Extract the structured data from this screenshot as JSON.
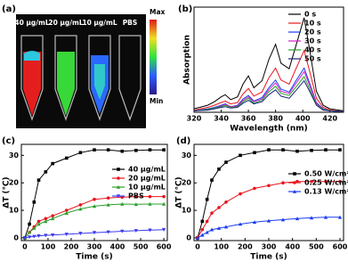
{
  "image_panel": {
    "panel_label": "(a)",
    "tube_labels": [
      "40 μg/mL",
      "20 μg/mL",
      "10 μg/mL",
      "PBS"
    ],
    "colorbar_max": "Max",
    "colorbar_min": "Min"
  },
  "chart_data": [
    {
      "type": "line",
      "panel_label": "(b)",
      "x_label": "Wavelength (nm)",
      "y_label": "Absorption",
      "x": [
        320,
        330,
        335,
        340,
        343,
        347,
        352,
        356,
        360,
        364,
        370,
        375,
        380,
        384,
        390,
        395,
        401,
        405,
        410,
        415,
        420,
        430
      ],
      "xlim": [
        320,
        430
      ],
      "xticks": [
        320,
        340,
        360,
        380,
        400,
        420
      ],
      "ylim": [
        0,
        1.5
      ],
      "legend": "upper right",
      "series": [
        {
          "name": "0 s",
          "color": "#000000",
          "values": [
            0.05,
            0.1,
            0.15,
            0.22,
            0.25,
            0.18,
            0.22,
            0.4,
            0.52,
            0.35,
            0.45,
            0.75,
            0.97,
            0.7,
            0.62,
            0.95,
            1.35,
            0.9,
            0.3,
            0.1,
            0.05,
            0.02
          ]
        },
        {
          "name": "10 s",
          "color": "#e8141b",
          "values": [
            0.03,
            0.07,
            0.1,
            0.14,
            0.16,
            0.12,
            0.14,
            0.26,
            0.34,
            0.23,
            0.29,
            0.49,
            0.63,
            0.46,
            0.4,
            0.62,
            0.88,
            0.59,
            0.2,
            0.07,
            0.03,
            0.01
          ]
        },
        {
          "name": "20 s",
          "color": "#1a3cf0",
          "values": [
            0.02,
            0.05,
            0.07,
            0.1,
            0.12,
            0.08,
            0.1,
            0.19,
            0.24,
            0.16,
            0.21,
            0.35,
            0.46,
            0.33,
            0.29,
            0.45,
            0.63,
            0.42,
            0.14,
            0.05,
            0.02,
            0.01
          ]
        },
        {
          "name": "30 s",
          "color": "#d020c8",
          "values": [
            0.02,
            0.04,
            0.06,
            0.09,
            0.11,
            0.08,
            0.09,
            0.17,
            0.22,
            0.15,
            0.19,
            0.32,
            0.42,
            0.3,
            0.27,
            0.41,
            0.58,
            0.39,
            0.13,
            0.04,
            0.02,
            0.01
          ]
        },
        {
          "name": "40 s",
          "color": "#2aa02a",
          "values": [
            0.02,
            0.04,
            0.06,
            0.08,
            0.1,
            0.07,
            0.08,
            0.15,
            0.2,
            0.13,
            0.17,
            0.29,
            0.37,
            0.27,
            0.24,
            0.36,
            0.51,
            0.34,
            0.11,
            0.04,
            0.02,
            0.01
          ]
        },
        {
          "name": "50 s",
          "color": "#1a237e",
          "values": [
            0.02,
            0.03,
            0.05,
            0.07,
            0.08,
            0.06,
            0.07,
            0.13,
            0.17,
            0.12,
            0.15,
            0.25,
            0.32,
            0.23,
            0.2,
            0.31,
            0.45,
            0.3,
            0.1,
            0.03,
            0.02,
            0.01
          ]
        }
      ]
    },
    {
      "type": "line",
      "panel_label": "(c)",
      "x_label": "Time (s)",
      "y_label": "ΔT (℃)",
      "x": [
        0,
        20,
        40,
        60,
        90,
        120,
        180,
        240,
        300,
        360,
        420,
        480,
        540,
        600
      ],
      "xlim": [
        -15,
        615
      ],
      "xticks": [
        0,
        100,
        200,
        300,
        400,
        500,
        600
      ],
      "ylim": [
        -1,
        34
      ],
      "yticks": [
        0,
        10,
        20,
        30
      ],
      "legend": "center right",
      "series": [
        {
          "name": "40 μg/mL",
          "color": "#000000",
          "marker": "square",
          "values": [
            0,
            5,
            13,
            21,
            24,
            27,
            29,
            31,
            32,
            32,
            31.5,
            31.8,
            32,
            32
          ]
        },
        {
          "name": "20 μg/mL",
          "color": "#e8141b",
          "marker": "circle",
          "values": [
            0,
            2,
            4,
            6,
            7,
            8,
            10,
            12,
            14,
            14.5,
            14.8,
            15,
            15,
            15
          ]
        },
        {
          "name": "10 μg/mL",
          "color": "#2aa02a",
          "marker": "triangle-up",
          "values": [
            0,
            2,
            3.5,
            5,
            6,
            7,
            9,
            10.5,
            11.5,
            12,
            12.3,
            12.2,
            12.3,
            12.3
          ]
        },
        {
          "name": "PBS",
          "color": "#3b3bf0",
          "marker": "triangle-down",
          "values": [
            0,
            0.3,
            0.5,
            0.7,
            0.9,
            1,
            1.3,
            1.6,
            1.9,
            2.1,
            2.4,
            2.6,
            2.8,
            3
          ]
        }
      ]
    },
    {
      "type": "line",
      "panel_label": "(d)",
      "x_label": "Time (s)",
      "y_label": "ΔT (℃)",
      "x": [
        0,
        20,
        40,
        60,
        90,
        120,
        180,
        240,
        300,
        360,
        420,
        480,
        540,
        600
      ],
      "xlim": [
        -15,
        615
      ],
      "xticks": [
        0,
        100,
        200,
        300,
        400,
        500,
        600
      ],
      "ylim": [
        -1,
        34
      ],
      "yticks": [
        0,
        10,
        20,
        30
      ],
      "legend": "center right",
      "series": [
        {
          "name": "0.50 W/cm²",
          "color": "#000000",
          "marker": "square",
          "values": [
            0,
            6,
            14,
            21,
            25,
            27.5,
            30,
            31,
            32,
            32,
            31.5,
            31.8,
            32,
            32
          ]
        },
        {
          "name": "0.25 W/cm²",
          "color": "#e8141b",
          "marker": "circle",
          "values": [
            0,
            3,
            6,
            9,
            11,
            13,
            16,
            18,
            19,
            20,
            20.5,
            20.5,
            20.5,
            20.5
          ]
        },
        {
          "name": "0.13 W/cm²",
          "color": "#1a3cf0",
          "marker": "triangle-up",
          "values": [
            0,
            1,
            2,
            3,
            3.5,
            4,
            5,
            5.7,
            6.2,
            6.6,
            7,
            7.3,
            7.5,
            7.5
          ]
        }
      ]
    }
  ]
}
